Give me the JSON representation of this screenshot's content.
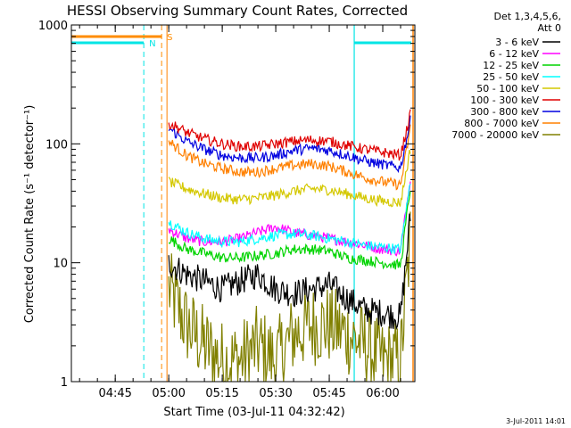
{
  "chart_data": {
    "type": "line",
    "title": "HESSI Observing Summary Count Rates, Corrected",
    "xlabel": "Start Time (03-Jul-11 04:32:42)",
    "ylabel": "Corrected Count Rate (s⁻¹ detector⁻¹)",
    "y_scale": "log",
    "ylim": [
      1,
      1000
    ],
    "xlim": [
      "04:32:42",
      "06:09:00"
    ],
    "x_ticks": [
      "04:45",
      "05:00",
      "05:15",
      "05:30",
      "05:45",
      "06:00"
    ],
    "y_ticks": [
      "1",
      "10",
      "100",
      "1000"
    ],
    "legend_header": [
      "Det 1,3,4,5,6,",
      "Att 0"
    ],
    "legend_position": "right",
    "footer_date": "3-Jul-2011 14:01",
    "markers": [
      {
        "label": "N",
        "color": "#00e5e5",
        "type": "night",
        "start": "04:32:42",
        "end": "04:53:00"
      },
      {
        "label": "",
        "color": "#00e5e5",
        "type": "night",
        "start": "05:52:00",
        "end": "06:08:00"
      },
      {
        "label": "S",
        "color": "#ff8c00",
        "type": "saa",
        "start": "04:32:42",
        "end": "04:58:00"
      }
    ],
    "data_start": "04:59:30",
    "data_end": "06:08:00",
    "series": [
      {
        "name": "3 - 6 keV",
        "color": "#000000",
        "x": [
          "05:00",
          "05:05",
          "05:10",
          "05:15",
          "05:20",
          "05:25",
          "05:30",
          "05:35",
          "05:40",
          "05:45",
          "05:50",
          "05:55",
          "06:00",
          "06:05",
          "06:08"
        ],
        "values": [
          10,
          8,
          7,
          6,
          7,
          8,
          6,
          5.5,
          6,
          6.5,
          5,
          4,
          3.8,
          3.5,
          30
        ]
      },
      {
        "name": "6 - 12 keV",
        "color": "#ff00ff",
        "x": [
          "05:00",
          "05:05",
          "05:10",
          "05:15",
          "05:20",
          "05:25",
          "05:30",
          "05:35",
          "05:40",
          "05:45",
          "05:50",
          "05:55",
          "06:00",
          "06:05",
          "06:08"
        ],
        "values": [
          19,
          16,
          15,
          15,
          16,
          18,
          20,
          18,
          17,
          16,
          15,
          14,
          13,
          12.5,
          60
        ]
      },
      {
        "name": "12 - 25 keV",
        "color": "#00d400",
        "x": [
          "05:00",
          "05:05",
          "05:10",
          "05:15",
          "05:20",
          "05:25",
          "05:30",
          "05:35",
          "05:40",
          "05:45",
          "05:50",
          "05:55",
          "06:00",
          "06:05",
          "06:08"
        ],
        "values": [
          16,
          13,
          12,
          11,
          11,
          11.5,
          12,
          13,
          13,
          12.5,
          11,
          10.5,
          10,
          9.5,
          50
        ]
      },
      {
        "name": "25 - 50 keV",
        "color": "#00ffff",
        "x": [
          "05:00",
          "05:05",
          "05:10",
          "05:15",
          "05:20",
          "05:25",
          "05:30",
          "05:35",
          "05:40",
          "05:45",
          "05:50",
          "05:55",
          "06:00",
          "06:05",
          "06:08"
        ],
        "values": [
          22,
          18,
          16,
          15,
          15,
          16,
          17,
          17.5,
          17,
          16,
          15,
          14,
          13.5,
          13,
          55
        ]
      },
      {
        "name": "50 - 100 keV",
        "color": "#d4c800",
        "x": [
          "05:00",
          "05:05",
          "05:10",
          "05:15",
          "05:20",
          "05:25",
          "05:30",
          "05:35",
          "05:40",
          "05:45",
          "05:50",
          "05:55",
          "06:00",
          "06:05",
          "06:08"
        ],
        "values": [
          48,
          42,
          38,
          35,
          34,
          35,
          37,
          40,
          42,
          41,
          38,
          35,
          33,
          32,
          100
        ]
      },
      {
        "name": "100 - 300 keV",
        "color": "#e00000",
        "x": [
          "05:00",
          "05:05",
          "05:10",
          "05:15",
          "05:20",
          "05:25",
          "05:30",
          "05:35",
          "05:40",
          "05:45",
          "05:50",
          "05:55",
          "06:00",
          "06:05",
          "06:08"
        ],
        "values": [
          150,
          125,
          110,
          100,
          95,
          95,
          100,
          105,
          108,
          105,
          97,
          90,
          85,
          80,
          190
        ]
      },
      {
        "name": "300 - 800 keV",
        "color": "#0000e0",
        "x": [
          "05:00",
          "05:05",
          "05:10",
          "05:15",
          "05:20",
          "05:25",
          "05:30",
          "05:35",
          "05:40",
          "05:45",
          "05:50",
          "05:55",
          "06:00",
          "06:05",
          "06:08"
        ],
        "values": [
          135,
          105,
          90,
          80,
          76,
          76,
          80,
          88,
          92,
          88,
          80,
          72,
          67,
          63,
          170
        ]
      },
      {
        "name": "800 - 7000 keV",
        "color": "#ff8000",
        "x": [
          "05:00",
          "05:05",
          "05:10",
          "05:15",
          "05:20",
          "05:25",
          "05:30",
          "05:35",
          "05:40",
          "05:45",
          "05:50",
          "05:55",
          "06:00",
          "06:05",
          "06:08"
        ],
        "values": [
          105,
          80,
          68,
          62,
          58,
          58,
          62,
          66,
          68,
          65,
          58,
          52,
          48,
          45,
          150
        ]
      },
      {
        "name": "7000 - 20000 keV",
        "color": "#808000",
        "x": [
          "05:00",
          "05:05",
          "05:10",
          "05:15",
          "05:20",
          "05:25",
          "05:30",
          "05:35",
          "05:40",
          "05:45",
          "05:50",
          "05:55",
          "06:00",
          "06:05",
          "06:08"
        ],
        "values": [
          6,
          3,
          2,
          1.5,
          1.5,
          2,
          1.5,
          2.5,
          3,
          3,
          2.5,
          2,
          1.5,
          1.5,
          20
        ]
      }
    ]
  }
}
